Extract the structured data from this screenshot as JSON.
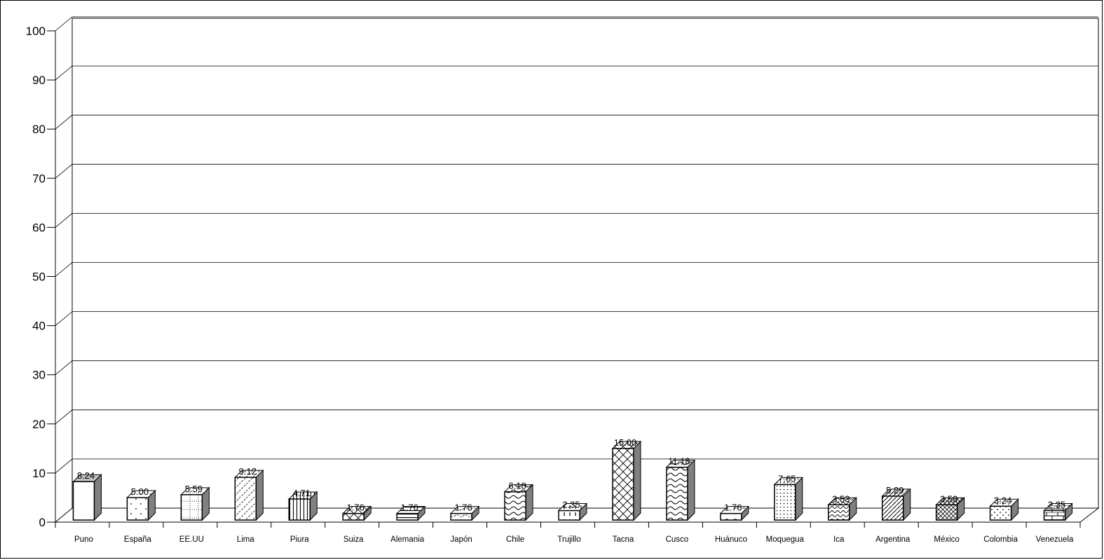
{
  "chart_data": {
    "type": "bar",
    "title": "",
    "xlabel": "",
    "ylabel": "",
    "ylim": [
      0,
      100
    ],
    "yticks": [
      0,
      10,
      20,
      30,
      40,
      50,
      60,
      70,
      80,
      90,
      100
    ],
    "grid": true,
    "legend": "none",
    "categories": [
      "Puno",
      "España",
      "EE.UU",
      "Lima",
      "Piura",
      "Suiza",
      "Alemania",
      "Japón",
      "Chile",
      "Trujillo",
      "Tacna",
      "Cusco",
      "Huánuco",
      "Moquegua",
      "Ica",
      "Argentina",
      "México",
      "Colombia",
      "Venezuela"
    ],
    "values": [
      8.24,
      5.0,
      5.59,
      9.12,
      4.71,
      1.76,
      1.76,
      1.76,
      6.18,
      2.35,
      15.0,
      11.18,
      1.76,
      7.65,
      3.53,
      5.29,
      3.53,
      3.24,
      2.35
    ],
    "data_labels": [
      "8.24",
      "5.00",
      "5.59",
      "9.12",
      "4.71",
      "1.76",
      "1.76",
      "1.76",
      "6.18",
      "2.35",
      "15.00",
      "11.18",
      "1.76",
      "7.65",
      "3.53",
      "5.29",
      "3.53",
      "3.24",
      "2.35"
    ],
    "patterns": [
      "solid",
      "sparse-dots",
      "dotted-grid",
      "diagonal-dash",
      "vertical-lines",
      "diagonal-cross",
      "horizontal-lines",
      "wave-dots",
      "waves",
      "dashed-vertical",
      "diagonal-cross",
      "waves",
      "dashes",
      "dense-dots",
      "small-waves",
      "diagonal-lines",
      "cross-hatch",
      "dots",
      "brick"
    ],
    "colors": {
      "bar_front": "#ffffff",
      "bar_side": "#808080",
      "bar_top": "#c0c0c0",
      "grid": "#000000"
    }
  }
}
